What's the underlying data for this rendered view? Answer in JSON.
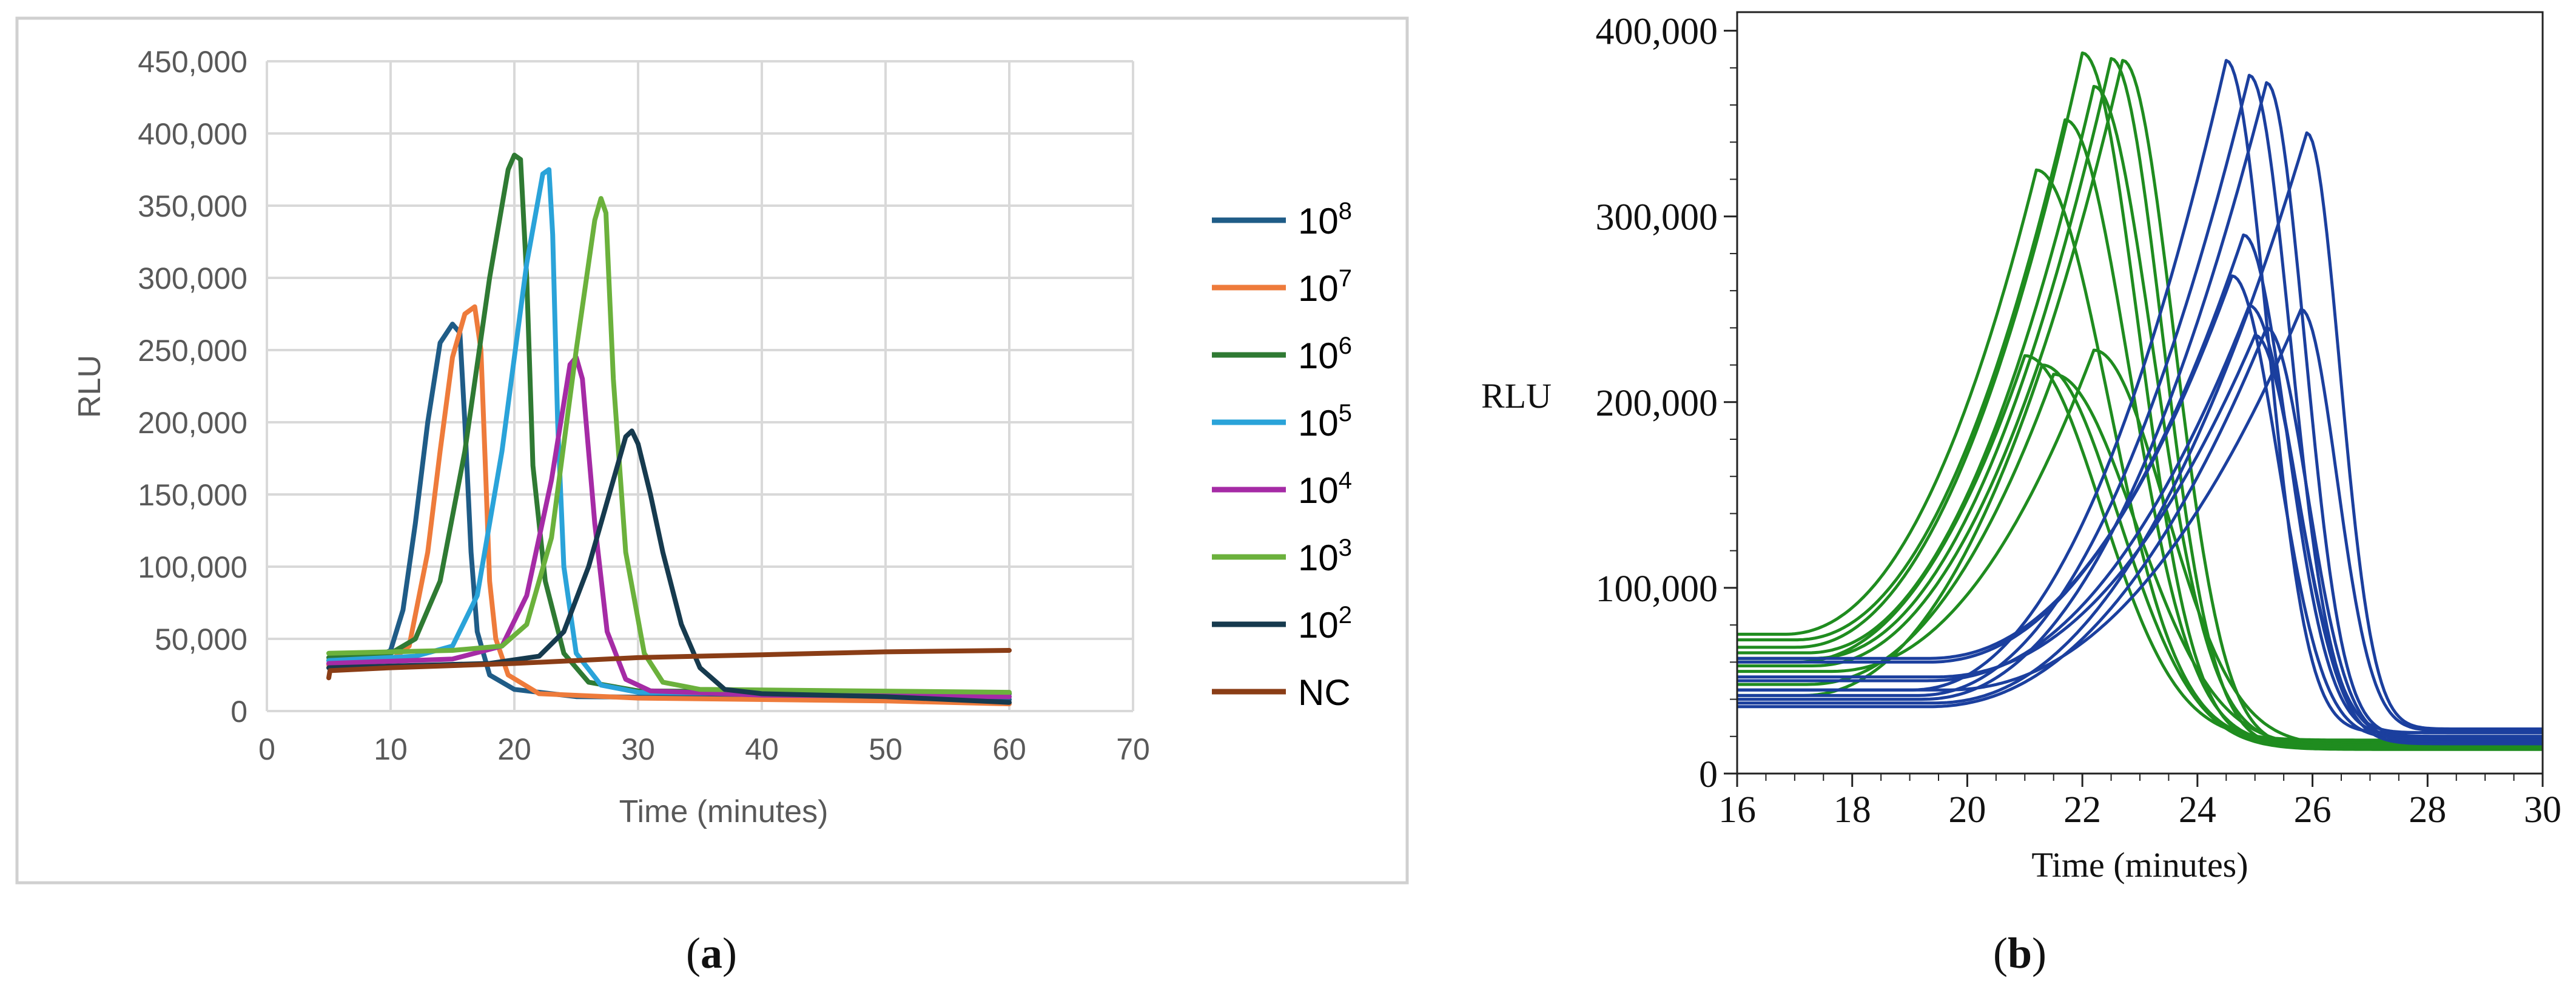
{
  "colors": {
    "c1e8": "#1f5c87",
    "c1e7": "#ee7b3b",
    "c1e6": "#2f7a33",
    "c1e5": "#2aa3d9",
    "c1e4": "#a52ba5",
    "c1e3": "#6bb13c",
    "c1e2": "#163a4e",
    "cNC": "#8a3d16",
    "green_b": "#1f8c1f",
    "blue_b": "#1b3f9e",
    "gridline": "#d9d9d9",
    "axis_text": "#595959",
    "frame": "#d0d0d0"
  },
  "panels": [
    {
      "label_open": "(",
      "label_letter": "a",
      "label_close": ")"
    },
    {
      "label_open": "(",
      "label_letter": "b",
      "label_close": ")"
    }
  ],
  "chart_data": [
    {
      "type": "line",
      "xlabel": "Time (minutes)",
      "ylabel": "RLU",
      "xlim": [
        0,
        70
      ],
      "ylim": [
        0,
        450000
      ],
      "xticks": [
        0,
        10,
        20,
        30,
        40,
        50,
        60,
        70
      ],
      "xtick_labels": [
        "0",
        "10",
        "20",
        "30",
        "40",
        "50",
        "60",
        "70"
      ],
      "yticks": [
        0,
        50000,
        100000,
        150000,
        200000,
        250000,
        300000,
        350000,
        400000,
        450000
      ],
      "ytick_labels": [
        "0",
        "50,000",
        "100,000",
        "150,000",
        "200,000",
        "250,000",
        "300,000",
        "350,000",
        "400,000",
        "450,000"
      ],
      "grid": true,
      "legend_position": "right",
      "series": [
        {
          "name_base": "10",
          "name_exp": "8",
          "color_key": "c1e8",
          "points": [
            [
              5,
              35000
            ],
            [
              9,
              38000
            ],
            [
              10,
              42000
            ],
            [
              11,
              70000
            ],
            [
              12,
              130000
            ],
            [
              13,
              200000
            ],
            [
              14,
              255000
            ],
            [
              15,
              268000
            ],
            [
              15.6,
              262000
            ],
            [
              16,
              200000
            ],
            [
              16.5,
              110000
            ],
            [
              17,
              55000
            ],
            [
              18,
              25000
            ],
            [
              20,
              15000
            ],
            [
              25,
              10000
            ],
            [
              40,
              9000
            ],
            [
              60,
              8000
            ]
          ]
        },
        {
          "name_base": "10",
          "name_exp": "7",
          "color_key": "c1e7",
          "points": [
            [
              5,
              32000
            ],
            [
              10,
              35000
            ],
            [
              11.5,
              45000
            ],
            [
              13,
              110000
            ],
            [
              14,
              180000
            ],
            [
              15,
              245000
            ],
            [
              16,
              275000
            ],
            [
              16.8,
              280000
            ],
            [
              17.3,
              250000
            ],
            [
              17.7,
              160000
            ],
            [
              18,
              90000
            ],
            [
              18.5,
              50000
            ],
            [
              19.5,
              25000
            ],
            [
              22,
              12000
            ],
            [
              30,
              9000
            ],
            [
              50,
              7000
            ],
            [
              60,
              5000
            ]
          ]
        },
        {
          "name_base": "10",
          "name_exp": "6",
          "color_key": "c1e6",
          "points": [
            [
              5,
              37000
            ],
            [
              10,
              40000
            ],
            [
              12,
              50000
            ],
            [
              14,
              90000
            ],
            [
              16,
              180000
            ],
            [
              18,
              300000
            ],
            [
              19.5,
              375000
            ],
            [
              20,
              385000
            ],
            [
              20.5,
              382000
            ],
            [
              21,
              300000
            ],
            [
              21.5,
              170000
            ],
            [
              22.5,
              90000
            ],
            [
              24,
              40000
            ],
            [
              26,
              20000
            ],
            [
              30,
              14000
            ],
            [
              60,
              12000
            ]
          ]
        },
        {
          "name_base": "10",
          "name_exp": "5",
          "color_key": "c1e5",
          "points": [
            [
              5,
              35000
            ],
            [
              12,
              38000
            ],
            [
              15,
              45000
            ],
            [
              17,
              80000
            ],
            [
              19,
              180000
            ],
            [
              21,
              310000
            ],
            [
              22.3,
              372000
            ],
            [
              22.8,
              375000
            ],
            [
              23.1,
              330000
            ],
            [
              23.5,
              200000
            ],
            [
              24,
              100000
            ],
            [
              25,
              40000
            ],
            [
              27,
              18000
            ],
            [
              30,
              13000
            ],
            [
              60,
              10000
            ]
          ]
        },
        {
          "name_base": "10",
          "name_exp": "4",
          "color_key": "c1e4",
          "points": [
            [
              5,
              33000
            ],
            [
              15,
              36000
            ],
            [
              19,
              45000
            ],
            [
              21,
              80000
            ],
            [
              23,
              160000
            ],
            [
              24.5,
              240000
            ],
            [
              25,
              245000
            ],
            [
              25.5,
              230000
            ],
            [
              26.5,
              130000
            ],
            [
              27.5,
              55000
            ],
            [
              29,
              22000
            ],
            [
              31,
              14000
            ],
            [
              40,
              11000
            ],
            [
              60,
              10000
            ]
          ]
        },
        {
          "name_base": "10",
          "name_exp": "3",
          "color_key": "c1e3",
          "points": [
            [
              5,
              40000
            ],
            [
              15,
              42000
            ],
            [
              19,
              45000
            ],
            [
              21,
              60000
            ],
            [
              23,
              120000
            ],
            [
              25,
              250000
            ],
            [
              26.5,
              340000
            ],
            [
              27,
              355000
            ],
            [
              27.4,
              345000
            ],
            [
              28,
              230000
            ],
            [
              29,
              110000
            ],
            [
              30.5,
              40000
            ],
            [
              32,
              20000
            ],
            [
              35,
              15000
            ],
            [
              60,
              13000
            ]
          ]
        },
        {
          "name_base": "10",
          "name_exp": "2",
          "color_key": "c1e2",
          "points": [
            [
              5,
              30000
            ],
            [
              18,
              33000
            ],
            [
              22,
              38000
            ],
            [
              24,
              55000
            ],
            [
              26,
              100000
            ],
            [
              28,
              160000
            ],
            [
              29,
              190000
            ],
            [
              29.5,
              194000
            ],
            [
              30,
              185000
            ],
            [
              31,
              150000
            ],
            [
              32,
              110000
            ],
            [
              33.5,
              60000
            ],
            [
              35,
              30000
            ],
            [
              37,
              15000
            ],
            [
              40,
              12000
            ],
            [
              50,
              10000
            ],
            [
              60,
              6000
            ]
          ]
        },
        {
          "name_base": "",
          "name_exp": "",
          "name_text": "NC",
          "color_key": "cNC",
          "points": [
            [
              5,
              23000
            ],
            [
              5.1,
              28000
            ],
            [
              10,
              30000
            ],
            [
              20,
              33000
            ],
            [
              25,
              35000
            ],
            [
              30,
              37000
            ],
            [
              40,
              39000
            ],
            [
              45,
              40000
            ],
            [
              50,
              41000
            ],
            [
              60,
              42000
            ]
          ]
        }
      ]
    },
    {
      "type": "line",
      "xlabel": "Time (minutes)",
      "ylabel": "RLU",
      "xlim": [
        16,
        30
      ],
      "ylim": [
        0,
        410000
      ],
      "xticks": [
        16,
        18,
        20,
        22,
        24,
        26,
        28,
        30
      ],
      "xtick_labels": [
        "16",
        "18",
        "20",
        "22",
        "24",
        "26",
        "28",
        "30"
      ],
      "yticks": [
        0,
        100000,
        200000,
        300000,
        400000
      ],
      "ytick_labels": [
        "0",
        "100,000",
        "200,000",
        "300,000",
        "400,000"
      ],
      "grid": false,
      "series": [
        {
          "group": "green",
          "peak_t": 22.0,
          "peak_v": 388000,
          "baseline": 68000,
          "rise": 5.0,
          "fall": 2.2,
          "tail": 15000
        },
        {
          "group": "green",
          "peak_t": 22.5,
          "peak_v": 385000,
          "baseline": 62000,
          "rise": 5.2,
          "fall": 2.0,
          "tail": 14000
        },
        {
          "group": "green",
          "peak_t": 22.7,
          "peak_v": 384000,
          "baseline": 58000,
          "rise": 5.4,
          "fall": 2.0,
          "tail": 14000
        },
        {
          "group": "green",
          "peak_t": 22.2,
          "peak_v": 370000,
          "baseline": 65000,
          "rise": 5.0,
          "fall": 2.3,
          "tail": 16000
        },
        {
          "group": "green",
          "peak_t": 21.7,
          "peak_v": 352000,
          "baseline": 72000,
          "rise": 4.7,
          "fall": 2.5,
          "tail": 16000
        },
        {
          "group": "green",
          "peak_t": 21.2,
          "peak_v": 325000,
          "baseline": 75000,
          "rise": 4.4,
          "fall": 2.8,
          "tail": 17000
        },
        {
          "group": "green",
          "peak_t": 21.0,
          "peak_v": 225000,
          "baseline": 60000,
          "rise": 4.0,
          "fall": 3.0,
          "tail": 18000
        },
        {
          "group": "green",
          "peak_t": 22.2,
          "peak_v": 228000,
          "baseline": 55000,
          "rise": 4.6,
          "fall": 2.8,
          "tail": 15000
        },
        {
          "group": "green",
          "peak_t": 21.5,
          "peak_v": 215000,
          "baseline": 48000,
          "rise": 4.3,
          "fall": 3.2,
          "tail": 14000
        },
        {
          "group": "green",
          "peak_t": 21.3,
          "peak_v": 220000,
          "baseline": 42000,
          "rise": 4.2,
          "fall": 3.0,
          "tail": 13000
        },
        {
          "group": "blue",
          "peak_t": 24.5,
          "peak_v": 384000,
          "baseline": 45000,
          "rise": 5.5,
          "fall": 1.6,
          "tail": 22000
        },
        {
          "group": "blue",
          "peak_t": 24.9,
          "peak_v": 376000,
          "baseline": 42000,
          "rise": 5.8,
          "fall": 1.6,
          "tail": 22000
        },
        {
          "group": "blue",
          "peak_t": 25.2,
          "peak_v": 372000,
          "baseline": 40000,
          "rise": 6.0,
          "fall": 1.5,
          "tail": 20000
        },
        {
          "group": "blue",
          "peak_t": 25.9,
          "peak_v": 345000,
          "baseline": 38000,
          "rise": 6.5,
          "fall": 1.3,
          "tail": 24000
        },
        {
          "group": "blue",
          "peak_t": 24.8,
          "peak_v": 290000,
          "baseline": 60000,
          "rise": 5.5,
          "fall": 1.7,
          "tail": 20000
        },
        {
          "group": "blue",
          "peak_t": 24.6,
          "peak_v": 268000,
          "baseline": 62000,
          "rise": 5.3,
          "fall": 1.8,
          "tail": 19000
        },
        {
          "group": "blue",
          "peak_t": 24.9,
          "peak_v": 252000,
          "baseline": 50000,
          "rise": 5.6,
          "fall": 1.8,
          "tail": 18000
        },
        {
          "group": "blue",
          "peak_t": 25.8,
          "peak_v": 250000,
          "baseline": 45000,
          "rise": 6.2,
          "fall": 1.4,
          "tail": 23000
        },
        {
          "group": "blue",
          "peak_t": 25.2,
          "peak_v": 240000,
          "baseline": 36000,
          "rise": 5.9,
          "fall": 1.6,
          "tail": 17000
        },
        {
          "group": "blue",
          "peak_t": 25.0,
          "peak_v": 236000,
          "baseline": 52000,
          "rise": 5.6,
          "fall": 1.7,
          "tail": 16000
        }
      ]
    }
  ]
}
